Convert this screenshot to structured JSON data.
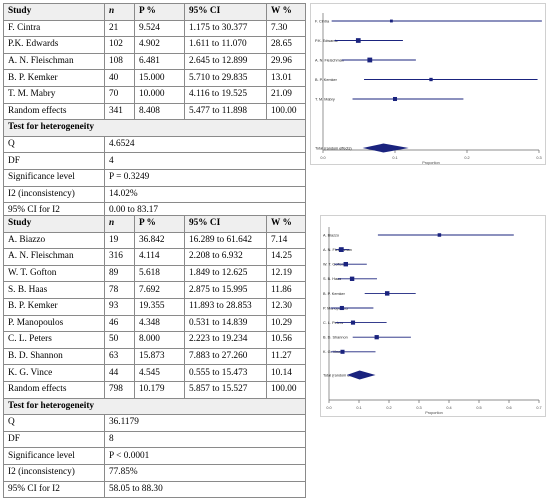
{
  "colors": {
    "marker": "#1a237e",
    "frame": "#d0d0d0",
    "table_border": "#8a8a8a",
    "header_bg": "#efefef"
  },
  "tables": [
    {
      "headers": [
        "Study",
        "n",
        "P %",
        "95% CI",
        "W %"
      ],
      "rows": [
        [
          "F. Cintra",
          "21",
          "9.524",
          "1.175 to 30.377",
          "7.30"
        ],
        [
          "P.K. Edwards",
          "102",
          "4.902",
          "1.611 to 11.070",
          "28.65"
        ],
        [
          "A. N. Fleischman",
          "108",
          "6.481",
          "2.645 to 12.899",
          "29.96"
        ],
        [
          "B. P. Kemker",
          "40",
          "15.000",
          "5.710 to 29.835",
          "13.01"
        ],
        [
          "T. M. Mabry",
          "70",
          "10.000",
          "4.116 to 19.525",
          "21.09"
        ],
        [
          "Random effects",
          "341",
          "8.408",
          "5.477 to 11.898",
          "100.00"
        ]
      ],
      "het_title": "Test for heterogeneity",
      "het_rows": [
        [
          "Q",
          "4.6524"
        ],
        [
          "DF",
          "4"
        ],
        [
          "Significance level",
          "P = 0.3249"
        ],
        [
          "I2 (inconsistency)",
          "14.02%"
        ],
        [
          "95% CI for I2",
          "0.00 to 83.17"
        ]
      ]
    },
    {
      "headers": [
        "Study",
        "n",
        "P %",
        "95% CI",
        "W %"
      ],
      "rows": [
        [
          "A. Biazzo",
          "19",
          "36.842",
          "16.289 to 61.642",
          "7.14"
        ],
        [
          "A. N. Fleischman",
          "316",
          "4.114",
          "2.208 to 6.932",
          "14.25"
        ],
        [
          "W. T. Gofton",
          "89",
          "5.618",
          "1.849 to 12.625",
          "12.19"
        ],
        [
          "S. B. Haas",
          "78",
          "7.692",
          "2.875 to 15.995",
          "11.86"
        ],
        [
          "B. P. Kemker",
          "93",
          "19.355",
          "11.893 to 28.853",
          "12.30"
        ],
        [
          "P. Manopoulos",
          "46",
          "4.348",
          "0.531 to 14.839",
          "10.29"
        ],
        [
          "C. L. Peters",
          "50",
          "8.000",
          "2.223 to 19.234",
          "10.56"
        ],
        [
          "B. D. Shannon",
          "63",
          "15.873",
          "7.883 to 27.260",
          "11.27"
        ],
        [
          "K. G. Vince",
          "44",
          "4.545",
          "0.555 to 15.473",
          "10.14"
        ],
        [
          "Random effects",
          "798",
          "10.179",
          "5.857 to 15.527",
          "100.00"
        ]
      ],
      "het_title": "Test for heterogeneity",
      "het_rows": [
        [
          "Q",
          "36.1179"
        ],
        [
          "DF",
          "8"
        ],
        [
          "Significance level",
          "P < 0.0001"
        ],
        [
          "I2 (inconsistency)",
          "77.85%"
        ],
        [
          "95% CI for I2",
          "58.05 to 88.30"
        ]
      ]
    }
  ],
  "chart_data": [
    {
      "type": "forest",
      "xlabel": "Proportion",
      "xlim": [
        0,
        0.3
      ],
      "xticks": [
        "0.0",
        "0.1",
        "0.2",
        "0.3"
      ],
      "studies": [
        {
          "label": "F. Cintra",
          "estimate": 0.095,
          "lower": 0.012,
          "upper": 0.304,
          "weight": 7.3
        },
        {
          "label": "P.K. Edwards",
          "estimate": 0.049,
          "lower": 0.016,
          "upper": 0.111,
          "weight": 28.65
        },
        {
          "label": "A. N. Fleischman",
          "estimate": 0.065,
          "lower": 0.026,
          "upper": 0.129,
          "weight": 29.96
        },
        {
          "label": "B. P. Kemker",
          "estimate": 0.15,
          "lower": 0.057,
          "upper": 0.298,
          "weight": 13.01
        },
        {
          "label": "T. M. Mabry",
          "estimate": 0.1,
          "lower": 0.041,
          "upper": 0.195,
          "weight": 21.09
        }
      ],
      "pooled": {
        "label": "Total (random effects)",
        "estimate": 0.084,
        "lower": 0.055,
        "upper": 0.119
      }
    },
    {
      "type": "forest",
      "xlabel": "Proportion",
      "xlim": [
        0,
        0.7
      ],
      "xticks": [
        "0.0",
        "0.1",
        "0.2",
        "0.3",
        "0.4",
        "0.5",
        "0.6",
        "0.7"
      ],
      "studies": [
        {
          "label": "A. Biazzo",
          "estimate": 0.368,
          "lower": 0.163,
          "upper": 0.616,
          "weight": 7.14
        },
        {
          "label": "A. N. Fleischman",
          "estimate": 0.041,
          "lower": 0.022,
          "upper": 0.069,
          "weight": 14.25
        },
        {
          "label": "W. T. Gofton",
          "estimate": 0.056,
          "lower": 0.018,
          "upper": 0.126,
          "weight": 12.19
        },
        {
          "label": "S. B. Haas",
          "estimate": 0.077,
          "lower": 0.029,
          "upper": 0.16,
          "weight": 11.86
        },
        {
          "label": "B. P. Kemker",
          "estimate": 0.194,
          "lower": 0.119,
          "upper": 0.289,
          "weight": 12.3
        },
        {
          "label": "P. Manopoulos",
          "estimate": 0.043,
          "lower": 0.005,
          "upper": 0.148,
          "weight": 10.29
        },
        {
          "label": "C. L. Peters",
          "estimate": 0.08,
          "lower": 0.022,
          "upper": 0.192,
          "weight": 10.56
        },
        {
          "label": "B. D. Shannon",
          "estimate": 0.159,
          "lower": 0.079,
          "upper": 0.273,
          "weight": 11.27
        },
        {
          "label": "K. G. Vince",
          "estimate": 0.045,
          "lower": 0.006,
          "upper": 0.155,
          "weight": 10.14
        }
      ],
      "pooled": {
        "label": "Total (random effects)",
        "estimate": 0.102,
        "lower": 0.059,
        "upper": 0.155
      }
    }
  ]
}
